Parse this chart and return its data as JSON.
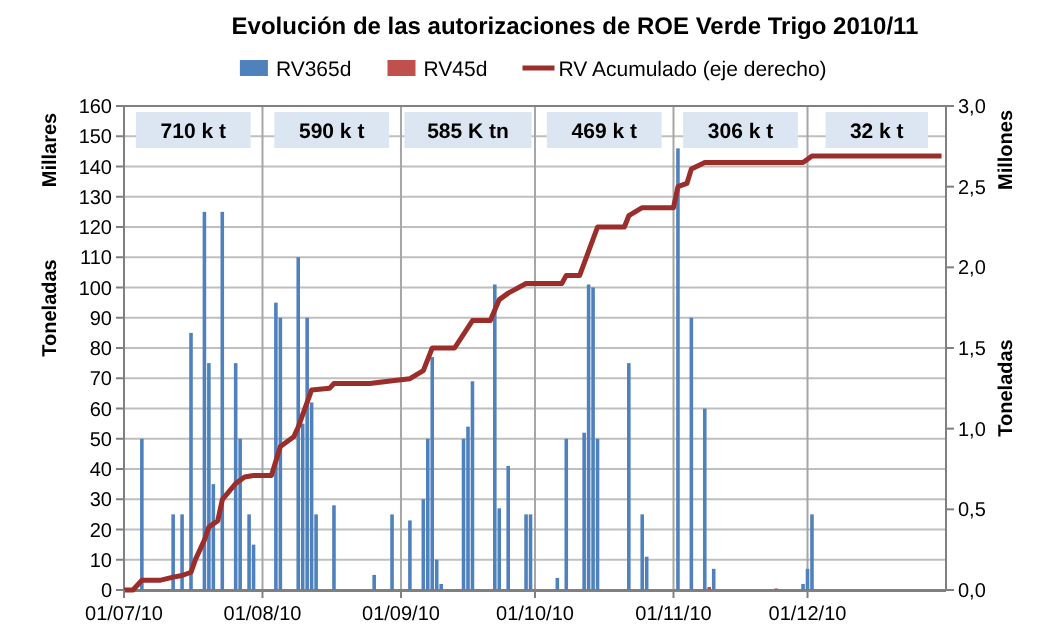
{
  "chart_data": {
    "type": "bar",
    "title": "Evolución de las autorizaciones de ROE Verde Trigo 2010/11",
    "ylabel": "Toneladas",
    "y2label": "Toneladas",
    "xlim": [
      "2010-07-01",
      "2011-01-01"
    ],
    "xticks": [
      {
        "value": "2010-07-01",
        "label": "01/07/10"
      },
      {
        "value": "2010-08-01",
        "label": "01/08/10"
      },
      {
        "value": "2010-09-01",
        "label": "01/09/10"
      },
      {
        "value": "2010-10-01",
        "label": "01/10/10"
      },
      {
        "value": "2010-11-01",
        "label": "01/11/10"
      },
      {
        "value": "2010-12-01",
        "label": "01/12/10"
      }
    ],
    "ylim": [
      0,
      160
    ],
    "yticks": [
      0,
      10,
      20,
      30,
      40,
      50,
      60,
      70,
      80,
      90,
      100,
      110,
      120,
      130,
      140,
      150,
      160
    ],
    "y2lim": [
      0,
      3
    ],
    "y2ticks": [
      {
        "value": 0,
        "label": "0,0"
      },
      {
        "value": 0.5,
        "label": "0,5"
      },
      {
        "value": 1,
        "label": "1,0"
      },
      {
        "value": 1.5,
        "label": "1,5"
      },
      {
        "value": 2,
        "label": "2,0"
      },
      {
        "value": 2.5,
        "label": "2,5"
      },
      {
        "value": 3,
        "label": "3,0"
      }
    ],
    "grid": true,
    "legend": "top",
    "annotations": [
      "Millares",
      "Millones",
      "710 k t",
      "590 k t",
      "585 K tn",
      "469 k t",
      "306 k t",
      "32 k t"
    ],
    "series": [
      {
        "name": "RV365d",
        "color": "#4f81bd",
        "x": [
          "2010-07-05",
          "2010-07-12",
          "2010-07-14",
          "2010-07-16",
          "2010-07-19",
          "2010-07-20",
          "2010-07-21",
          "2010-07-23",
          "2010-07-26",
          "2010-07-27",
          "2010-07-29",
          "2010-07-30",
          "2010-08-04",
          "2010-08-05",
          "2010-08-09",
          "2010-08-10",
          "2010-08-11",
          "2010-08-12",
          "2010-08-13",
          "2010-08-17",
          "2010-08-26",
          "2010-08-30",
          "2010-09-03",
          "2010-09-06",
          "2010-09-07",
          "2010-09-08",
          "2010-09-09",
          "2010-09-10",
          "2010-09-15",
          "2010-09-16",
          "2010-09-17",
          "2010-09-22",
          "2010-09-23",
          "2010-09-25",
          "2010-09-29",
          "2010-09-30",
          "2010-10-06",
          "2010-10-08",
          "2010-10-12",
          "2010-10-13",
          "2010-10-14",
          "2010-10-15",
          "2010-10-22",
          "2010-10-25",
          "2010-10-26",
          "2010-11-02",
          "2010-11-05",
          "2010-11-08",
          "2010-11-10",
          "2010-11-30",
          "2010-12-01",
          "2010-12-02"
        ],
        "values": [
          50,
          25,
          25,
          85,
          125,
          75,
          35,
          125,
          75,
          50,
          25,
          15,
          95,
          90,
          110,
          55,
          90,
          62,
          25,
          28,
          5,
          25,
          23,
          30,
          50,
          77,
          10,
          2,
          50,
          54,
          69,
          101,
          27,
          41,
          25,
          25,
          4,
          50,
          52,
          101,
          100,
          50,
          75,
          25,
          11,
          146,
          90,
          60,
          7,
          2,
          7,
          25
        ]
      },
      {
        "name": "RV45d",
        "color": "#c0504d",
        "x": [
          "2010-11-09",
          "2010-11-24"
        ],
        "values": [
          1,
          0.5
        ]
      },
      {
        "name": "RV Acumulado (eje derecho)",
        "type": "line",
        "axis": "y2",
        "color": "#9b2d2a",
        "x": [
          "2010-07-01",
          "2010-07-03",
          "2010-07-05",
          "2010-07-09",
          "2010-07-12",
          "2010-07-14",
          "2010-07-16",
          "2010-07-17",
          "2010-07-19",
          "2010-07-20",
          "2010-07-22",
          "2010-07-23",
          "2010-07-26",
          "2010-07-28",
          "2010-07-30",
          "2010-08-03",
          "2010-08-05",
          "2010-08-08",
          "2010-08-09",
          "2010-08-12",
          "2010-08-16",
          "2010-08-17",
          "2010-08-25",
          "2010-08-31",
          "2010-09-03",
          "2010-09-06",
          "2010-09-08",
          "2010-09-13",
          "2010-09-17",
          "2010-09-21",
          "2010-09-23",
          "2010-09-25",
          "2010-09-29",
          "2010-10-07",
          "2010-10-08",
          "2010-10-11",
          "2010-10-13",
          "2010-10-15",
          "2010-10-21",
          "2010-10-22",
          "2010-10-25",
          "2010-11-01",
          "2010-11-02",
          "2010-11-04",
          "2010-11-05",
          "2010-11-08",
          "2010-11-30",
          "2010-12-02",
          "2010-12-31"
        ],
        "values": [
          0,
          0,
          0.06,
          0.06,
          0.08,
          0.09,
          0.11,
          0.19,
          0.31,
          0.39,
          0.43,
          0.56,
          0.66,
          0.7,
          0.71,
          0.71,
          0.89,
          0.95,
          1.01,
          1.24,
          1.25,
          1.28,
          1.28,
          1.3,
          1.31,
          1.36,
          1.5,
          1.5,
          1.67,
          1.67,
          1.8,
          1.84,
          1.9,
          1.9,
          1.95,
          1.95,
          2.1,
          2.25,
          2.25,
          2.32,
          2.37,
          2.37,
          2.5,
          2.52,
          2.61,
          2.65,
          2.65,
          2.69,
          2.69
        ]
      }
    ]
  }
}
